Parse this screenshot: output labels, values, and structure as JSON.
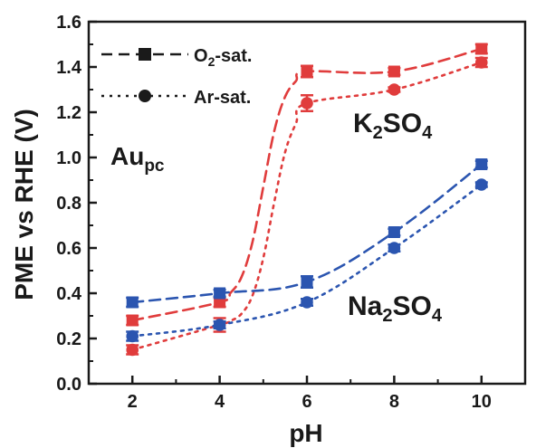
{
  "chart_data": {
    "type": "scatter",
    "xlabel": "pH",
    "ylabel": "PME vs RHE (V)",
    "xlim": [
      1,
      11
    ],
    "ylim": [
      0.0,
      1.6
    ],
    "xticks": [
      "2",
      "4",
      "6",
      "8",
      "10"
    ],
    "yticks": [
      "0.0",
      "0.2",
      "0.4",
      "0.6",
      "0.8",
      "1.0",
      "1.2",
      "1.4",
      "1.6"
    ],
    "legend_position": "top-left",
    "legend": [
      {
        "label_main": "O",
        "label_sub": "2",
        "label_rest": "-sat.",
        "marker": "square",
        "line": "dashed"
      },
      {
        "label_main": "Ar-sat.",
        "label_sub": "",
        "label_rest": "",
        "marker": "circle",
        "line": "dotted"
      }
    ],
    "annotations": {
      "electrode": {
        "main": "Au",
        "sub": "pc",
        "color": "#1a1a1a"
      },
      "k2so4": {
        "p1": "K",
        "s1": "2",
        "p2": "SO",
        "s2": "4",
        "color": "#e03c3c"
      },
      "na2so4": {
        "p1": "Na",
        "s1": "2",
        "p2": "SO",
        "s2": "4",
        "color": "#2b55b0"
      }
    },
    "series": [
      {
        "electrolyte": "K2SO4",
        "gas": "O2-sat.",
        "marker": "square",
        "line": "dashed",
        "color": "#e03c3c",
        "x": [
          2,
          4,
          6,
          8,
          10
        ],
        "y": [
          0.28,
          0.36,
          1.38,
          1.38,
          1.48
        ],
        "err": [
          0.02,
          0.02,
          0.025,
          0.015,
          0.02
        ]
      },
      {
        "electrolyte": "K2SO4",
        "gas": "Ar-sat.",
        "marker": "circle",
        "line": "dotted",
        "color": "#e03c3c",
        "x": [
          2,
          4,
          6,
          8,
          10
        ],
        "y": [
          0.15,
          0.26,
          1.24,
          1.3,
          1.42
        ],
        "err": [
          0.02,
          0.03,
          0.035,
          0.01,
          0.02
        ]
      },
      {
        "electrolyte": "Na2SO4",
        "gas": "O2-sat.",
        "marker": "square",
        "line": "dashed",
        "color": "#2b55b0",
        "x": [
          2,
          4,
          6,
          8,
          10
        ],
        "y": [
          0.36,
          0.4,
          0.45,
          0.67,
          0.97
        ],
        "err": [
          0.02,
          0.015,
          0.025,
          0.015,
          0.015
        ]
      },
      {
        "electrolyte": "Na2SO4",
        "gas": "Ar-sat.",
        "marker": "circle",
        "line": "dotted",
        "color": "#2b55b0",
        "x": [
          2,
          4,
          6,
          8,
          10
        ],
        "y": [
          0.21,
          0.26,
          0.36,
          0.6,
          0.88
        ],
        "err": [
          0.02,
          0.015,
          0.015,
          0.015,
          0.01
        ]
      }
    ]
  }
}
